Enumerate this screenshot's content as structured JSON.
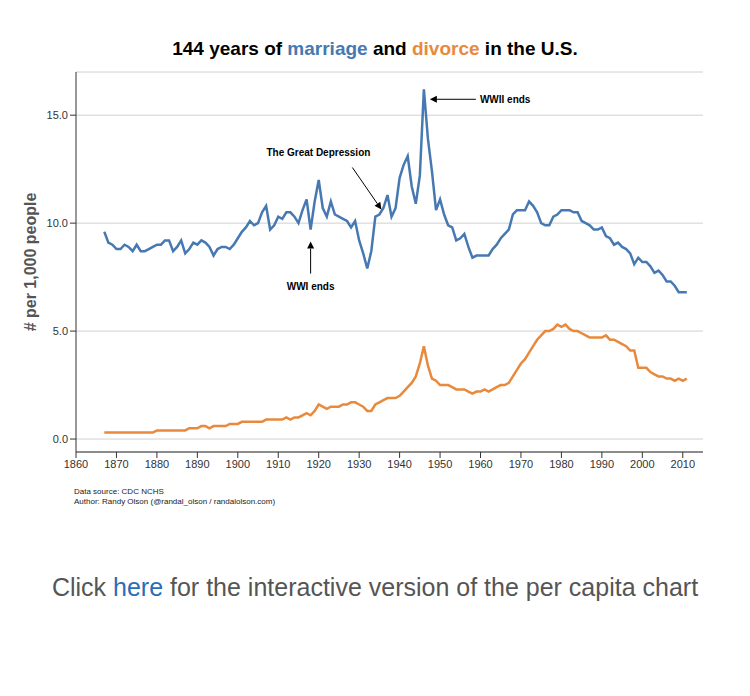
{
  "chart_data": {
    "type": "line",
    "title": "144 years of marriage and divorce in the U.S.",
    "y_label": "# per 1,000 people",
    "x": [
      1867,
      1868,
      1869,
      1870,
      1871,
      1872,
      1873,
      1874,
      1875,
      1876,
      1877,
      1878,
      1879,
      1880,
      1881,
      1882,
      1883,
      1884,
      1885,
      1886,
      1887,
      1888,
      1889,
      1890,
      1891,
      1892,
      1893,
      1894,
      1895,
      1896,
      1897,
      1898,
      1899,
      1900,
      1901,
      1902,
      1903,
      1904,
      1905,
      1906,
      1907,
      1908,
      1909,
      1910,
      1911,
      1912,
      1913,
      1914,
      1915,
      1916,
      1917,
      1918,
      1919,
      1920,
      1921,
      1922,
      1923,
      1924,
      1925,
      1926,
      1927,
      1928,
      1929,
      1930,
      1931,
      1932,
      1933,
      1934,
      1935,
      1936,
      1937,
      1938,
      1939,
      1940,
      1941,
      1942,
      1943,
      1944,
      1945,
      1946,
      1947,
      1948,
      1949,
      1950,
      1951,
      1952,
      1953,
      1954,
      1955,
      1956,
      1957,
      1958,
      1959,
      1960,
      1961,
      1962,
      1963,
      1964,
      1965,
      1966,
      1967,
      1968,
      1969,
      1970,
      1971,
      1972,
      1973,
      1974,
      1975,
      1976,
      1977,
      1978,
      1979,
      1980,
      1981,
      1982,
      1983,
      1984,
      1985,
      1986,
      1987,
      1988,
      1989,
      1990,
      1991,
      1992,
      1993,
      1994,
      1995,
      1996,
      1997,
      1998,
      1999,
      2000,
      2001,
      2002,
      2003,
      2004,
      2005,
      2006,
      2007,
      2008,
      2009,
      2010,
      2011
    ],
    "series": [
      {
        "name": "marriage",
        "color": "#4679b2",
        "values": [
          9.6,
          9.1,
          9.0,
          8.8,
          8.8,
          9.0,
          8.9,
          8.7,
          9.0,
          8.7,
          8.7,
          8.8,
          8.9,
          9.0,
          9.0,
          9.2,
          9.2,
          8.7,
          8.9,
          9.2,
          8.6,
          8.8,
          9.1,
          9.0,
          9.2,
          9.1,
          8.9,
          8.5,
          8.8,
          8.9,
          8.9,
          8.8,
          9.0,
          9.3,
          9.6,
          9.8,
          10.1,
          9.9,
          10.0,
          10.5,
          10.8,
          9.7,
          9.9,
          10.3,
          10.2,
          10.5,
          10.5,
          10.3,
          10.0,
          10.6,
          11.1,
          9.7,
          11.0,
          12.0,
          10.7,
          10.3,
          11.0,
          10.4,
          10.3,
          10.2,
          10.1,
          9.8,
          10.1,
          9.2,
          8.6,
          7.9,
          8.7,
          10.3,
          10.4,
          10.7,
          11.3,
          10.3,
          10.7,
          12.1,
          12.7,
          13.1,
          11.7,
          10.9,
          12.2,
          16.2,
          13.9,
          12.4,
          10.6,
          11.1,
          10.4,
          9.9,
          9.8,
          9.2,
          9.3,
          9.5,
          8.9,
          8.4,
          8.5,
          8.5,
          8.5,
          8.5,
          8.8,
          9.0,
          9.3,
          9.5,
          9.7,
          10.4,
          10.6,
          10.6,
          10.6,
          11.0,
          10.8,
          10.5,
          10.0,
          9.9,
          9.9,
          10.3,
          10.4,
          10.6,
          10.6,
          10.6,
          10.5,
          10.5,
          10.1,
          10.0,
          9.9,
          9.7,
          9.7,
          9.8,
          9.4,
          9.3,
          9.0,
          9.1,
          8.9,
          8.8,
          8.6,
          8.1,
          8.4,
          8.2,
          8.2,
          8.0,
          7.7,
          7.8,
          7.6,
          7.3,
          7.3,
          7.1,
          6.8,
          6.8,
          6.8
        ]
      },
      {
        "name": "divorce",
        "color": "#e8893c",
        "values": [
          0.3,
          0.3,
          0.3,
          0.3,
          0.3,
          0.3,
          0.3,
          0.3,
          0.3,
          0.3,
          0.3,
          0.3,
          0.3,
          0.4,
          0.4,
          0.4,
          0.4,
          0.4,
          0.4,
          0.4,
          0.4,
          0.5,
          0.5,
          0.5,
          0.6,
          0.6,
          0.5,
          0.6,
          0.6,
          0.6,
          0.6,
          0.7,
          0.7,
          0.7,
          0.8,
          0.8,
          0.8,
          0.8,
          0.8,
          0.8,
          0.9,
          0.9,
          0.9,
          0.9,
          0.9,
          1.0,
          0.9,
          1.0,
          1.0,
          1.1,
          1.2,
          1.1,
          1.3,
          1.6,
          1.5,
          1.4,
          1.5,
          1.5,
          1.5,
          1.6,
          1.6,
          1.7,
          1.7,
          1.6,
          1.5,
          1.3,
          1.3,
          1.6,
          1.7,
          1.8,
          1.9,
          1.9,
          1.9,
          2.0,
          2.2,
          2.4,
          2.6,
          2.9,
          3.5,
          4.3,
          3.4,
          2.8,
          2.7,
          2.5,
          2.5,
          2.5,
          2.4,
          2.3,
          2.3,
          2.3,
          2.2,
          2.1,
          2.2,
          2.2,
          2.3,
          2.2,
          2.3,
          2.4,
          2.5,
          2.5,
          2.6,
          2.9,
          3.2,
          3.5,
          3.7,
          4.0,
          4.3,
          4.6,
          4.8,
          5.0,
          5.0,
          5.1,
          5.3,
          5.2,
          5.3,
          5.1,
          5.0,
          5.0,
          4.9,
          4.8,
          4.7,
          4.7,
          4.7,
          4.7,
          4.8,
          4.6,
          4.6,
          4.5,
          4.4,
          4.3,
          4.1,
          4.1,
          3.3,
          3.3,
          3.3,
          3.1,
          3.0,
          2.9,
          2.9,
          2.8,
          2.8,
          2.7,
          2.8,
          2.7,
          2.8
        ]
      }
    ],
    "xlim": [
      1860,
      2015
    ],
    "xticks": [
      1860,
      1870,
      1880,
      1890,
      1900,
      1910,
      1920,
      1930,
      1940,
      1950,
      1960,
      1970,
      1980,
      1990,
      2000,
      2010
    ],
    "ylim": [
      -0.6,
      17
    ],
    "yticks": [
      {
        "value": 0,
        "label": "0.0"
      },
      {
        "value": 5,
        "label": "5.0"
      },
      {
        "value": 10,
        "label": "10.0"
      },
      {
        "value": 15,
        "label": "15.0"
      }
    ],
    "grid": true,
    "annotations": [
      {
        "text": "WWII ends",
        "x": 1946
      },
      {
        "text": "The Great Depression",
        "x": 1935
      },
      {
        "text": "WWI ends",
        "x": 1918
      }
    ],
    "footer": [
      "Data source: CDC NCHS",
      "Author: Randy Olson (@randal_olson / randalolson.com)"
    ]
  },
  "caption": "Click here for the interactive version of the per capita chart",
  "caption_link": "here"
}
